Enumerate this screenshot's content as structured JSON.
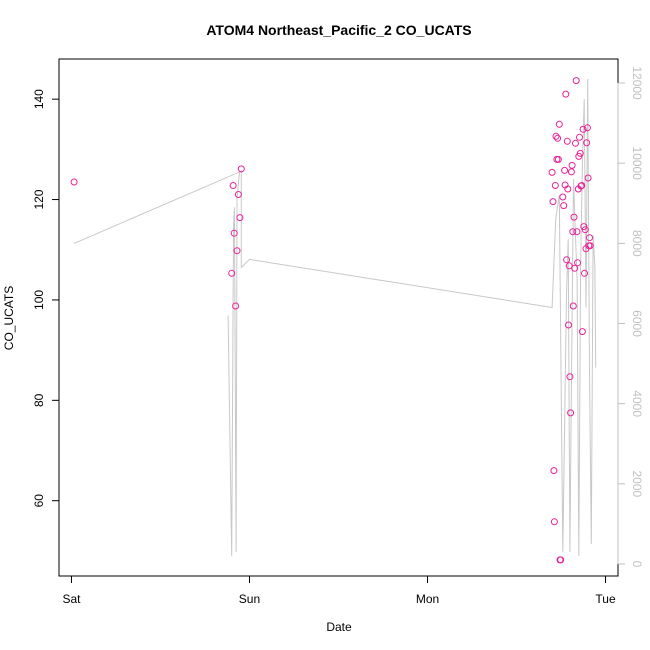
{
  "chart_data": {
    "type": "scatter",
    "title": "ATOM4 Northeast_Pacific_2 CO_UCATS",
    "xlabel": "Date",
    "ylabel": "CO_UCATS",
    "x_ticks": [
      {
        "label": "Sat",
        "value": 0
      },
      {
        "label": "Sun",
        "value": 1
      },
      {
        "label": "Mon",
        "value": 2
      },
      {
        "label": "Tue",
        "value": 3
      }
    ],
    "xlim": [
      -0.07,
      3.07
    ],
    "ylim": [
      45,
      148
    ],
    "y_ticks": [
      60,
      80,
      100,
      120,
      140
    ],
    "y2lim": [
      -300,
      12600
    ],
    "y2_ticks": [
      0,
      2000,
      4000,
      6000,
      8000,
      10000,
      12000
    ],
    "colors": {
      "points": "#e8239a",
      "secondary_line": "#c8c8c8",
      "right_axis": "#c0c0c0"
    },
    "series": [
      {
        "axis": "left",
        "style": "points",
        "points": [
          [
            0.015,
            123.5
          ],
          [
            0.9,
            105.3
          ],
          [
            0.908,
            122.8
          ],
          [
            0.914,
            113.3
          ],
          [
            0.922,
            98.8
          ],
          [
            0.93,
            109.8
          ],
          [
            0.938,
            121.0
          ],
          [
            0.946,
            116.4
          ],
          [
            0.954,
            126.1
          ],
          [
            2.7,
            125.4
          ],
          [
            2.705,
            119.6
          ],
          [
            2.71,
            66.0
          ],
          [
            2.713,
            55.8
          ],
          [
            2.718,
            122.8
          ],
          [
            2.722,
            132.6
          ],
          [
            2.727,
            128.0
          ],
          [
            2.731,
            132.2
          ],
          [
            2.735,
            128.0
          ],
          [
            2.74,
            135.0
          ],
          [
            2.744,
            48.2
          ],
          [
            2.748,
            48.2
          ],
          [
            2.76,
            120.5
          ],
          [
            2.765,
            118.8
          ],
          [
            2.77,
            125.8
          ],
          [
            2.773,
            122.9
          ],
          [
            2.777,
            141.0
          ],
          [
            2.781,
            108.0
          ],
          [
            2.785,
            131.6
          ],
          [
            2.788,
            122.1
          ],
          [
            2.792,
            95.0
          ],
          [
            2.796,
            106.8
          ],
          [
            2.8,
            84.7
          ],
          [
            2.804,
            77.5
          ],
          [
            2.808,
            125.5
          ],
          [
            2.812,
            126.8
          ],
          [
            2.816,
            113.6
          ],
          [
            2.819,
            98.8
          ],
          [
            2.823,
            116.5
          ],
          [
            2.827,
            106.3
          ],
          [
            2.831,
            131.2
          ],
          [
            2.835,
            143.7
          ],
          [
            2.839,
            113.6
          ],
          [
            2.843,
            107.4
          ],
          [
            2.847,
            122.1
          ],
          [
            2.85,
            128.6
          ],
          [
            2.854,
            132.4
          ],
          [
            2.858,
            129.2
          ],
          [
            2.862,
            122.7
          ],
          [
            2.866,
            122.8
          ],
          [
            2.87,
            93.7
          ],
          [
            2.874,
            134.0
          ],
          [
            2.878,
            114.6
          ],
          [
            2.882,
            105.3
          ],
          [
            2.886,
            114.0
          ],
          [
            2.89,
            110.2
          ],
          [
            2.894,
            131.3
          ],
          [
            2.898,
            134.3
          ],
          [
            2.902,
            124.3
          ],
          [
            2.906,
            110.8
          ],
          [
            2.91,
            112.4
          ],
          [
            2.914,
            110.8
          ]
        ]
      },
      {
        "axis": "right",
        "style": "line",
        "points": [
          [
            0.015,
            8000
          ],
          [
            0.954,
            9800
          ],
          [
            0.954,
            7400
          ],
          [
            1.0,
            7600
          ],
          [
            2.7,
            6400
          ],
          [
            2.7,
            6400
          ],
          [
            2.72,
            8600
          ],
          [
            2.74,
            9200
          ],
          [
            2.76,
            300
          ],
          [
            2.78,
            6600
          ],
          [
            2.79,
            8100
          ],
          [
            2.8,
            300
          ],
          [
            2.81,
            5200
          ],
          [
            2.82,
            9600
          ],
          [
            2.83,
            8300
          ],
          [
            2.84,
            7100
          ],
          [
            2.85,
            200
          ],
          [
            2.86,
            7400
          ],
          [
            2.87,
            10000
          ],
          [
            2.88,
            11600
          ],
          [
            2.89,
            6400
          ],
          [
            2.9,
            12100
          ],
          [
            2.91,
            4800
          ],
          [
            2.92,
            500
          ],
          [
            2.93,
            8200
          ],
          [
            2.94,
            7400
          ],
          [
            2.945,
            4900
          ]
        ]
      },
      {
        "axis": "right",
        "style": "line",
        "points": [
          [
            0.88,
            6200
          ],
          [
            0.9,
            200
          ],
          [
            0.91,
            8400
          ],
          [
            0.915,
            8900
          ],
          [
            0.925,
            300
          ],
          [
            0.93,
            9100
          ],
          [
            0.94,
            9600
          ],
          [
            0.945,
            9800
          ]
        ]
      }
    ]
  }
}
